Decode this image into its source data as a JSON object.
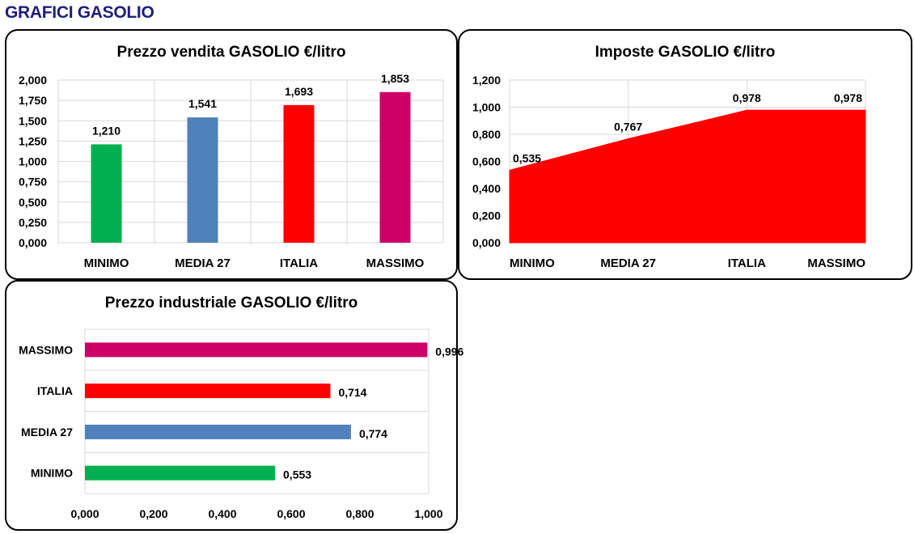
{
  "page": {
    "title": "GRAFICI GASOLIO"
  },
  "colors": {
    "minimo": "#00b050",
    "media27": "#4f81bd",
    "italia": "#ff0000",
    "massimo": "#cc0066",
    "grid": "#d9d9d9"
  },
  "chart_data": [
    {
      "id": "prezzo-vendita",
      "type": "bar",
      "title": "Prezzo vendita GASOLIO €/litro",
      "categories": [
        "MINIMO",
        "MEDIA 27",
        "ITALIA",
        "MASSIMO"
      ],
      "values": [
        1.21,
        1.541,
        1.693,
        1.853
      ],
      "value_labels": [
        "1,210",
        "1,541",
        "1,693",
        "1,853"
      ],
      "bar_colors": [
        "#00b050",
        "#4f81bd",
        "#ff0000",
        "#cc0066"
      ],
      "ylim": [
        0,
        2
      ],
      "yticks": [
        0,
        0.25,
        0.5,
        0.75,
        1.0,
        1.25,
        1.5,
        1.75,
        2.0
      ],
      "ytick_labels": [
        "0,000",
        "0,250",
        "0,500",
        "0,750",
        "1,000",
        "1,250",
        "1,500",
        "1,750",
        "2,000"
      ],
      "grid": true,
      "xlabel": "",
      "ylabel": ""
    },
    {
      "id": "imposte",
      "type": "area",
      "title": "Imposte GASOLIO €/litro",
      "categories": [
        "MINIMO",
        "MEDIA 27",
        "ITALIA",
        "MASSIMO"
      ],
      "values": [
        0.535,
        0.767,
        0.978,
        0.978
      ],
      "value_labels": [
        "0,535",
        "0,767",
        "0,978",
        "0,978"
      ],
      "color": "#ff0000",
      "ylim": [
        0,
        1.2
      ],
      "yticks": [
        0,
        0.2,
        0.4,
        0.6,
        0.8,
        1.0,
        1.2
      ],
      "ytick_labels": [
        "0,000",
        "0,200",
        "0,400",
        "0,600",
        "0,800",
        "1,000",
        "1,200"
      ],
      "grid": true,
      "xlabel": "",
      "ylabel": ""
    },
    {
      "id": "prezzo-industriale",
      "type": "bar",
      "orientation": "horizontal",
      "title": "Prezzo industriale GASOLIO €/litro",
      "categories": [
        "MINIMO",
        "MEDIA 27",
        "ITALIA",
        "MASSIMO"
      ],
      "values": [
        0.553,
        0.774,
        0.714,
        0.996
      ],
      "value_labels": [
        "0,553",
        "0,774",
        "0,714",
        "0,996"
      ],
      "bar_colors": [
        "#00b050",
        "#4f81bd",
        "#ff0000",
        "#cc0066"
      ],
      "xlim": [
        0,
        1
      ],
      "xticks": [
        0,
        0.2,
        0.4,
        0.6,
        0.8,
        1.0
      ],
      "xtick_labels": [
        "0,000",
        "0,200",
        "0,400",
        "0,600",
        "0,800",
        "1,000"
      ],
      "grid": true,
      "xlabel": "",
      "ylabel": ""
    }
  ]
}
